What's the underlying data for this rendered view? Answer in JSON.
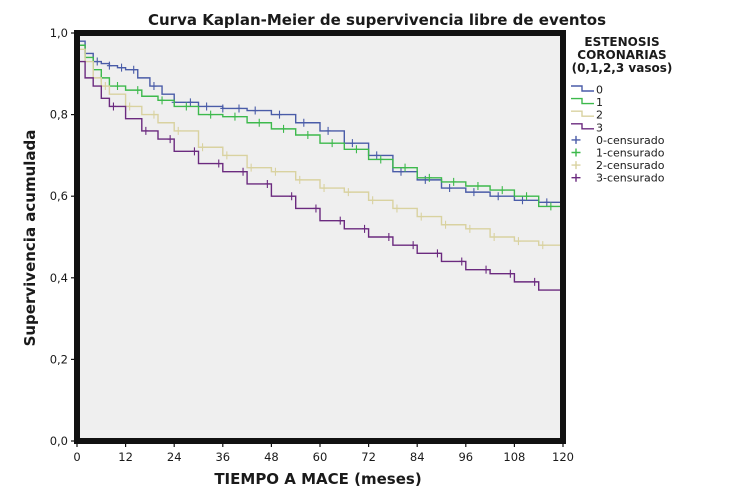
{
  "chart_data": {
    "type": "line",
    "title": "Curva Kaplan-Meier de supervivencia libre de eventos",
    "xlabel": "TIEMPO A MACE (meses)",
    "ylabel": "Supervivencia acumulada",
    "xlim": [
      0,
      120
    ],
    "ylim": [
      0,
      1
    ],
    "x_ticks": [
      0,
      12,
      24,
      36,
      48,
      60,
      72,
      84,
      96,
      108,
      120
    ],
    "x_tick_labels": [
      "0",
      "12",
      "24",
      "36",
      "48",
      "60",
      "72",
      "84",
      "96",
      "108",
      "120"
    ],
    "y_ticks": [
      0,
      0.2,
      0.4,
      0.6,
      0.8,
      1.0
    ],
    "y_tick_labels": [
      "0,0",
      "0,2",
      "0,4",
      "0,6",
      "0,8",
      "1,0"
    ],
    "grid": false,
    "background": "#efefef",
    "legend": {
      "title_lines": [
        "ESTENOSIS",
        "CORONARIAS",
        "(0,1,2,3 vasos)"
      ],
      "placement": "right",
      "entries": [
        {
          "label": "0",
          "kind": "step",
          "series": 0
        },
        {
          "label": "1",
          "kind": "step",
          "series": 1
        },
        {
          "label": "2",
          "kind": "step",
          "series": 2
        },
        {
          "label": "3",
          "kind": "step",
          "series": 3
        },
        {
          "label": "0-censurado",
          "kind": "censor",
          "series": 0
        },
        {
          "label": "1-censurado",
          "kind": "censor",
          "series": 1
        },
        {
          "label": "2-censurado",
          "kind": "censor",
          "series": 2
        },
        {
          "label": "3-censurado",
          "kind": "censor",
          "series": 3
        }
      ]
    },
    "series": [
      {
        "color": "#4a5ca8",
        "x": [
          0,
          2,
          4,
          6,
          8,
          10,
          12,
          15,
          18,
          21,
          24,
          30,
          36,
          42,
          48,
          54,
          60,
          66,
          72,
          78,
          84,
          90,
          96,
          102,
          108,
          114,
          120
        ],
        "y": [
          0.98,
          0.95,
          0.93,
          0.925,
          0.92,
          0.915,
          0.91,
          0.89,
          0.87,
          0.85,
          0.83,
          0.82,
          0.815,
          0.81,
          0.8,
          0.78,
          0.76,
          0.73,
          0.7,
          0.66,
          0.64,
          0.62,
          0.61,
          0.6,
          0.59,
          0.585,
          0.58
        ],
        "censored_x": [
          5,
          8,
          11,
          14,
          19,
          24,
          28,
          32,
          36,
          40,
          44,
          50,
          56,
          62,
          68,
          74,
          80,
          86,
          92,
          98,
          104,
          110,
          116
        ]
      },
      {
        "color": "#3db94c",
        "x": [
          0,
          2,
          4,
          6,
          8,
          12,
          16,
          20,
          24,
          30,
          36,
          42,
          48,
          54,
          60,
          66,
          72,
          78,
          84,
          90,
          96,
          102,
          108,
          114,
          120
        ],
        "y": [
          0.97,
          0.94,
          0.91,
          0.89,
          0.87,
          0.86,
          0.845,
          0.835,
          0.82,
          0.8,
          0.795,
          0.78,
          0.765,
          0.75,
          0.73,
          0.715,
          0.69,
          0.67,
          0.645,
          0.635,
          0.625,
          0.615,
          0.6,
          0.575,
          0.55
        ],
        "censored_x": [
          6,
          10,
          15,
          21,
          27,
          33,
          39,
          45,
          51,
          57,
          63,
          69,
          75,
          81,
          87,
          93,
          99,
          105,
          111,
          117
        ]
      },
      {
        "color": "#d9d2a0",
        "x": [
          0,
          2,
          4,
          6,
          8,
          12,
          16,
          20,
          24,
          30,
          36,
          42,
          48,
          54,
          60,
          66,
          72,
          78,
          84,
          90,
          96,
          102,
          108,
          114,
          120
        ],
        "y": [
          0.96,
          0.93,
          0.89,
          0.87,
          0.85,
          0.82,
          0.8,
          0.78,
          0.76,
          0.72,
          0.7,
          0.67,
          0.66,
          0.64,
          0.62,
          0.61,
          0.59,
          0.57,
          0.55,
          0.53,
          0.52,
          0.5,
          0.49,
          0.48,
          0.44
        ],
        "censored_x": [
          7,
          13,
          19,
          25,
          31,
          37,
          43,
          49,
          55,
          61,
          67,
          73,
          79,
          85,
          91,
          97,
          103,
          109,
          115
        ]
      },
      {
        "color": "#6b2a7f",
        "x": [
          0,
          2,
          4,
          6,
          8,
          12,
          16,
          20,
          24,
          30,
          36,
          42,
          48,
          54,
          60,
          66,
          72,
          78,
          84,
          90,
          96,
          102,
          108,
          114,
          120
        ],
        "y": [
          0.93,
          0.89,
          0.87,
          0.84,
          0.82,
          0.79,
          0.76,
          0.74,
          0.71,
          0.68,
          0.66,
          0.63,
          0.6,
          0.57,
          0.54,
          0.52,
          0.5,
          0.48,
          0.46,
          0.44,
          0.42,
          0.41,
          0.39,
          0.37,
          0.355
        ],
        "censored_x": [
          9,
          17,
          23,
          29,
          35,
          41,
          47,
          53,
          59,
          65,
          71,
          77,
          83,
          89,
          95,
          101,
          107,
          113
        ]
      }
    ]
  }
}
